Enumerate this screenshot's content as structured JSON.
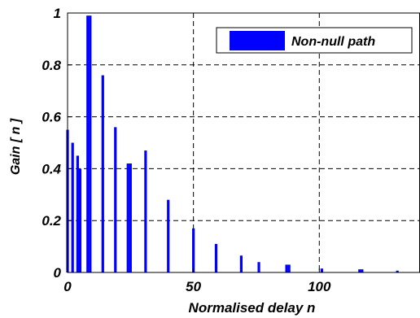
{
  "chart_data": {
    "type": "bar",
    "xlabel": "Normalised delay n",
    "ylabel": "Gain [ n ]",
    "xlim": [
      0,
      140
    ],
    "ylim": [
      0,
      1
    ],
    "grid": true,
    "grid_x_ticks": [
      50,
      100
    ],
    "grid_y_ticks": [
      0.2,
      0.4,
      0.6,
      0.8
    ],
    "x_ticks": [
      0,
      50,
      100
    ],
    "x_tick_labels": [
      "0",
      "50",
      "100"
    ],
    "y_ticks": [
      0,
      0.2,
      0.4,
      0.6,
      0.8,
      1
    ],
    "y_tick_labels": [
      "0",
      "0.2",
      "0.4",
      "0.6",
      "0.8",
      "1"
    ],
    "legend_position": "top-right",
    "bar_color": "#0000ff",
    "series": [
      {
        "name": "Non-null path",
        "x": [
          0,
          2,
          4,
          5,
          8,
          9,
          14,
          19,
          24,
          25,
          31,
          40,
          50,
          59,
          69,
          76,
          87,
          88,
          101,
          116,
          117,
          131
        ],
        "y": [
          0.55,
          0.5,
          0.45,
          0.4,
          0.99,
          0.99,
          0.76,
          0.56,
          0.42,
          0.42,
          0.47,
          0.28,
          0.17,
          0.11,
          0.065,
          0.04,
          0.03,
          0.03,
          0.015,
          0.012,
          0.012,
          0.007
        ]
      }
    ]
  }
}
